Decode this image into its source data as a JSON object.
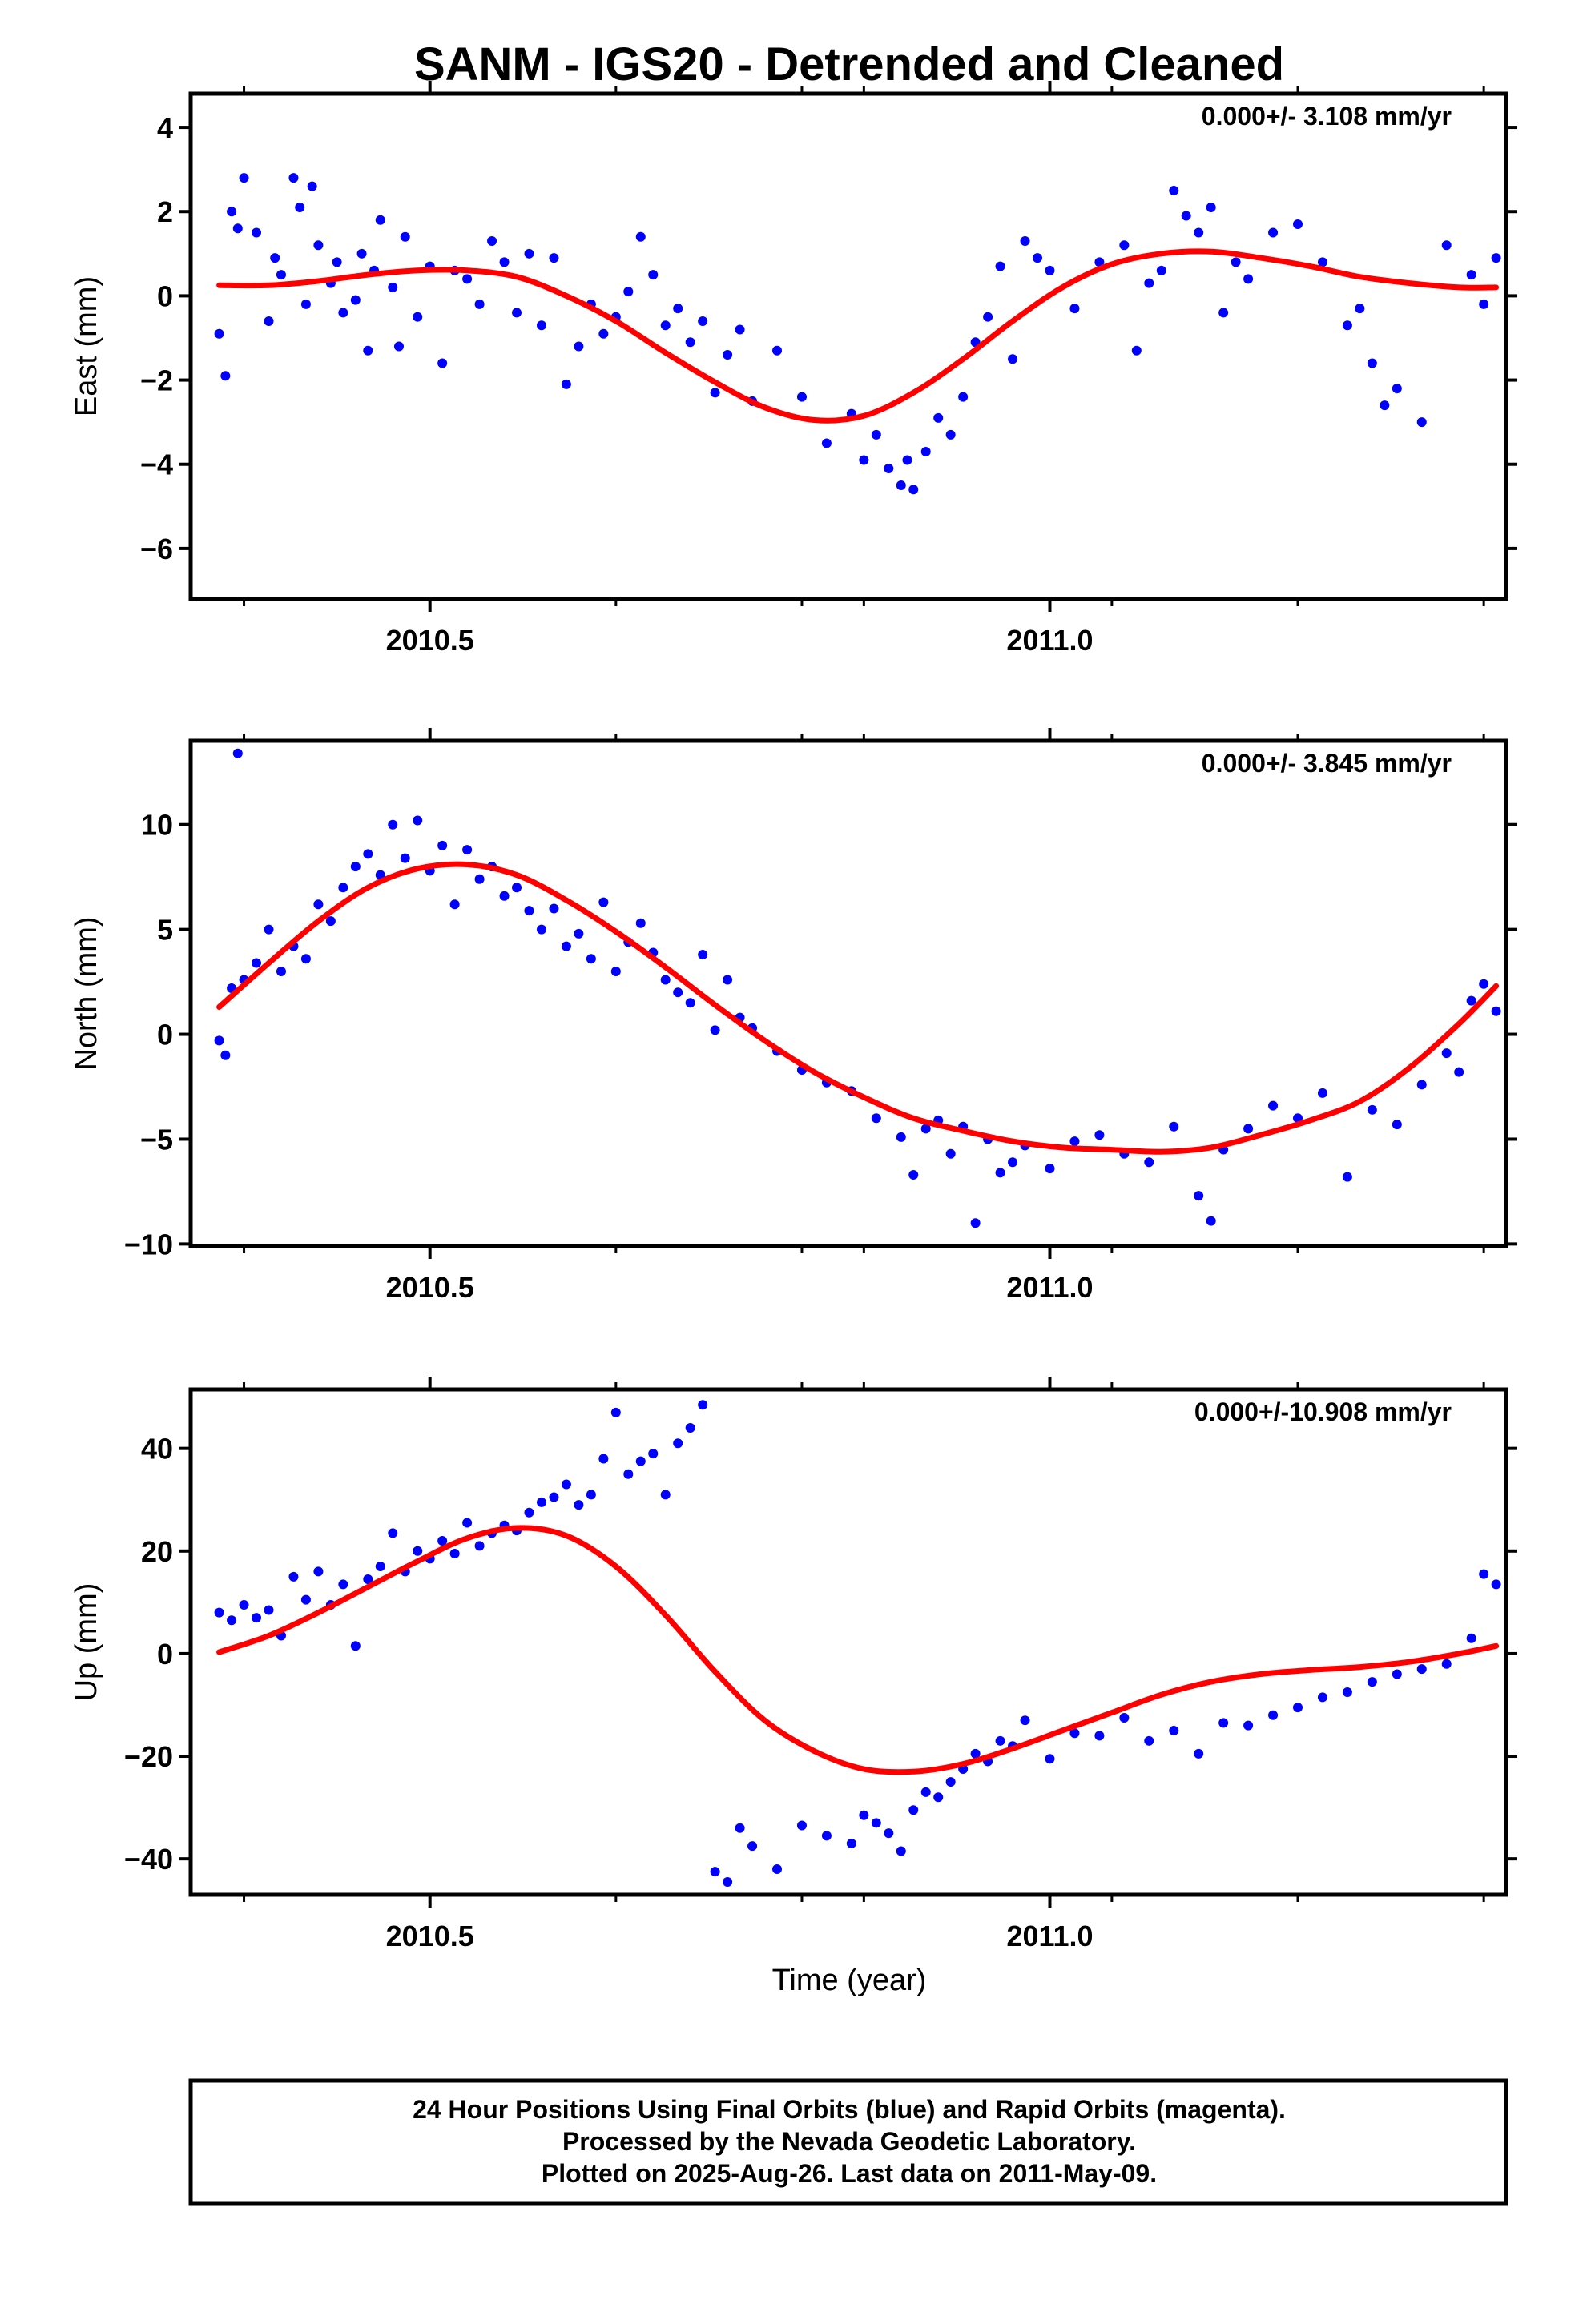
{
  "figure": {
    "title": "SANM - IGS20 - Detrended and Cleaned",
    "xlabel": "Time (year)",
    "footer": [
      "24 Hour Positions Using Final Orbits (blue) and Rapid Orbits (magenta).",
      "Processed by the Nevada Geodetic Laboratory.",
      "Plotted on 2025-Aug-26. Last data on 2011-May-09."
    ]
  },
  "colors": {
    "points": "#0000ff",
    "fit": "#ff0000",
    "frame": "#000000"
  },
  "chart_data": [
    {
      "type": "scatter",
      "ylabel": "East (mm)",
      "rate_label": "0.000+/- 3.108 mm/yr",
      "xlim": [
        2010.307,
        2011.368
      ],
      "ylim": [
        -7.2,
        4.8
      ],
      "yticks": [
        4,
        2,
        0,
        -2,
        -4,
        -6
      ],
      "xticks": [
        2010.5,
        2011.0
      ],
      "xtick_labels": [
        "2010.5",
        "2011.0"
      ],
      "series": [
        {
          "kind": "points",
          "x": [
            2010.33,
            2010.335,
            2010.34,
            2010.345,
            2010.35,
            2010.36,
            2010.37,
            2010.375,
            2010.38,
            2010.39,
            2010.395,
            2010.4,
            2010.405,
            2010.41,
            2010.42,
            2010.425,
            2010.43,
            2010.44,
            2010.445,
            2010.45,
            2010.455,
            2010.46,
            2010.47,
            2010.475,
            2010.48,
            2010.49,
            2010.5,
            2010.51,
            2010.52,
            2010.53,
            2010.54,
            2010.55,
            2010.56,
            2010.57,
            2010.58,
            2010.59,
            2010.6,
            2010.61,
            2010.62,
            2010.63,
            2010.64,
            2010.65,
            2010.66,
            2010.67,
            2010.68,
            2010.69,
            2010.7,
            2010.71,
            2010.72,
            2010.73,
            2010.74,
            2010.75,
            2010.76,
            2010.78,
            2010.8,
            2010.82,
            2010.84,
            2010.85,
            2010.86,
            2010.87,
            2010.88,
            2010.885,
            2010.89,
            2010.9,
            2010.91,
            2010.92,
            2010.93,
            2010.94,
            2010.95,
            2010.96,
            2010.97,
            2010.98,
            2010.99,
            2011.0,
            2011.02,
            2011.04,
            2011.06,
            2011.07,
            2011.08,
            2011.09,
            2011.1,
            2011.11,
            2011.12,
            2011.13,
            2011.14,
            2011.15,
            2011.16,
            2011.18,
            2011.2,
            2011.22,
            2011.24,
            2011.25,
            2011.26,
            2011.27,
            2011.28,
            2011.3,
            2011.32,
            2011.34,
            2011.35,
            2011.36
          ],
          "y": [
            -0.9,
            -1.9,
            2.0,
            1.6,
            2.8,
            1.5,
            -0.6,
            0.9,
            0.5,
            2.8,
            2.1,
            -0.2,
            2.6,
            1.2,
            0.3,
            0.8,
            -0.4,
            -0.1,
            1.0,
            -1.3,
            0.6,
            1.8,
            0.2,
            -1.2,
            1.4,
            -0.5,
            0.7,
            -1.6,
            0.6,
            0.4,
            -0.2,
            1.3,
            0.8,
            -0.4,
            1.0,
            -0.7,
            0.9,
            -2.1,
            -1.2,
            -0.2,
            -0.9,
            -0.5,
            0.1,
            1.4,
            0.5,
            -0.7,
            -0.3,
            -1.1,
            -0.6,
            -2.3,
            -1.4,
            -0.8,
            -2.5,
            -1.3,
            -2.4,
            -3.5,
            -2.8,
            -3.9,
            -3.3,
            -4.1,
            -4.5,
            -3.9,
            -4.6,
            -3.7,
            -2.9,
            -3.3,
            -2.4,
            -1.1,
            -0.5,
            0.7,
            -1.5,
            1.3,
            0.9,
            0.6,
            -0.3,
            0.8,
            1.2,
            -1.3,
            0.3,
            0.6,
            2.5,
            1.9,
            1.5,
            2.1,
            -0.4,
            0.8,
            0.4,
            1.5,
            1.7,
            0.8,
            -0.7,
            -0.3,
            -1.6,
            -2.6,
            -2.2,
            -3.0,
            1.2,
            0.5,
            -0.2,
            0.9
          ]
        },
        {
          "kind": "line",
          "x": [
            2010.33,
            2010.37,
            2010.41,
            2010.45,
            2010.49,
            2010.53,
            2010.57,
            2010.61,
            2010.65,
            2010.69,
            2010.73,
            2010.77,
            2010.81,
            2010.85,
            2010.89,
            2010.93,
            2010.97,
            2011.01,
            2011.05,
            2011.09,
            2011.13,
            2011.17,
            2011.21,
            2011.25,
            2011.29,
            2011.33,
            2011.36
          ],
          "y": [
            0.25,
            0.25,
            0.35,
            0.5,
            0.6,
            0.6,
            0.45,
            0.0,
            -0.6,
            -1.35,
            -2.05,
            -2.65,
            -2.95,
            -2.85,
            -2.3,
            -1.5,
            -0.6,
            0.2,
            0.75,
            1.0,
            1.05,
            0.9,
            0.7,
            0.45,
            0.3,
            0.2,
            0.2
          ]
        }
      ]
    },
    {
      "type": "scatter",
      "ylabel": "North (mm)",
      "rate_label": "0.000+/- 3.845 mm/yr",
      "xlim": [
        2010.307,
        2011.368
      ],
      "ylim": [
        -10.1,
        14.0
      ],
      "yticks": [
        10,
        5,
        0,
        -5,
        -10
      ],
      "xticks": [
        2010.5,
        2011.0
      ],
      "xtick_labels": [
        "2010.5",
        "2011.0"
      ],
      "series": [
        {
          "kind": "points",
          "x": [
            2010.33,
            2010.335,
            2010.34,
            2010.345,
            2010.35,
            2010.36,
            2010.37,
            2010.38,
            2010.39,
            2010.4,
            2010.41,
            2010.42,
            2010.43,
            2010.44,
            2010.45,
            2010.46,
            2010.47,
            2010.48,
            2010.49,
            2010.5,
            2010.51,
            2010.52,
            2010.53,
            2010.54,
            2010.55,
            2010.56,
            2010.57,
            2010.58,
            2010.59,
            2010.6,
            2010.61,
            2010.62,
            2010.63,
            2010.64,
            2010.65,
            2010.66,
            2010.67,
            2010.68,
            2010.69,
            2010.7,
            2010.71,
            2010.72,
            2010.73,
            2010.74,
            2010.75,
            2010.76,
            2010.78,
            2010.8,
            2010.82,
            2010.84,
            2010.86,
            2010.88,
            2010.89,
            2010.9,
            2010.91,
            2010.92,
            2010.93,
            2010.94,
            2010.95,
            2010.96,
            2010.97,
            2010.98,
            2011.0,
            2011.02,
            2011.04,
            2011.06,
            2011.08,
            2011.1,
            2011.12,
            2011.13,
            2011.14,
            2011.16,
            2011.18,
            2011.2,
            2011.22,
            2011.24,
            2011.26,
            2011.28,
            2011.3,
            2011.32,
            2011.33,
            2011.34,
            2011.35,
            2011.36
          ],
          "y": [
            -0.3,
            -1.0,
            2.2,
            13.4,
            2.6,
            3.4,
            5.0,
            3.0,
            4.2,
            3.6,
            6.2,
            5.4,
            7.0,
            8.0,
            8.6,
            7.6,
            10.0,
            8.4,
            10.2,
            7.8,
            9.0,
            6.2,
            8.8,
            7.4,
            8.0,
            6.6,
            7.0,
            5.9,
            5.0,
            6.0,
            4.2,
            4.8,
            3.6,
            6.3,
            3.0,
            4.4,
            5.3,
            3.9,
            2.6,
            2.0,
            1.5,
            3.8,
            0.2,
            2.6,
            0.8,
            0.3,
            -0.8,
            -1.7,
            -2.3,
            -2.7,
            -4.0,
            -4.9,
            -6.7,
            -4.5,
            -4.1,
            -5.7,
            -4.4,
            -9.0,
            -5.0,
            -6.6,
            -6.1,
            -5.3,
            -6.4,
            -5.1,
            -4.8,
            -5.7,
            -6.1,
            -4.4,
            -7.7,
            -8.9,
            -5.5,
            -4.5,
            -3.4,
            -4.0,
            -2.8,
            -6.8,
            -3.6,
            -4.3,
            -2.4,
            -0.9,
            -1.8,
            1.6,
            2.4,
            1.1
          ]
        },
        {
          "kind": "line",
          "x": [
            2010.33,
            2010.37,
            2010.41,
            2010.45,
            2010.49,
            2010.53,
            2010.57,
            2010.61,
            2010.65,
            2010.69,
            2010.73,
            2010.77,
            2010.81,
            2010.85,
            2010.89,
            2010.93,
            2010.97,
            2011.01,
            2011.05,
            2011.09,
            2011.13,
            2011.17,
            2011.21,
            2011.25,
            2011.29,
            2011.33,
            2011.36
          ],
          "y": [
            1.3,
            3.4,
            5.4,
            7.0,
            7.9,
            8.1,
            7.6,
            6.4,
            4.9,
            3.2,
            1.4,
            -0.3,
            -1.8,
            -3.0,
            -4.0,
            -4.6,
            -5.1,
            -5.4,
            -5.5,
            -5.6,
            -5.4,
            -4.8,
            -4.1,
            -3.2,
            -1.6,
            0.5,
            2.3
          ]
        }
      ]
    },
    {
      "type": "scatter",
      "ylabel": "Up (mm)",
      "rate_label": "0.000+/-10.908 mm/yr",
      "xlim": [
        2010.307,
        2011.368
      ],
      "ylim": [
        -47.0,
        51.5
      ],
      "yticks": [
        40,
        20,
        0,
        -20,
        -40
      ],
      "xticks": [
        2010.5,
        2011.0
      ],
      "xtick_labels": [
        "2010.5",
        "2011.0"
      ],
      "series": [
        {
          "kind": "points",
          "x": [
            2010.33,
            2010.34,
            2010.35,
            2010.36,
            2010.37,
            2010.38,
            2010.39,
            2010.4,
            2010.41,
            2010.42,
            2010.43,
            2010.44,
            2010.45,
            2010.46,
            2010.47,
            2010.48,
            2010.49,
            2010.5,
            2010.51,
            2010.52,
            2010.53,
            2010.54,
            2010.55,
            2010.56,
            2010.57,
            2010.58,
            2010.59,
            2010.6,
            2010.61,
            2010.62,
            2010.63,
            2010.64,
            2010.65,
            2010.66,
            2010.67,
            2010.68,
            2010.69,
            2010.7,
            2010.71,
            2010.72,
            2010.73,
            2010.74,
            2010.75,
            2010.76,
            2010.78,
            2010.8,
            2010.82,
            2010.84,
            2010.85,
            2010.86,
            2010.87,
            2010.88,
            2010.89,
            2010.9,
            2010.91,
            2010.92,
            2010.93,
            2010.94,
            2010.95,
            2010.96,
            2010.97,
            2010.98,
            2011.0,
            2011.02,
            2011.04,
            2011.06,
            2011.08,
            2011.1,
            2011.12,
            2011.14,
            2011.16,
            2011.18,
            2011.2,
            2011.22,
            2011.24,
            2011.26,
            2011.28,
            2011.3,
            2011.32,
            2011.34,
            2011.35,
            2011.36
          ],
          "y": [
            8.0,
            6.5,
            9.5,
            7.0,
            8.5,
            3.5,
            15.0,
            10.5,
            16.0,
            9.5,
            13.5,
            1.5,
            14.5,
            17.0,
            23.5,
            16.0,
            20.0,
            18.5,
            22.0,
            19.5,
            25.5,
            21.0,
            23.5,
            25.0,
            24.0,
            27.5,
            29.5,
            30.5,
            33.0,
            29.0,
            31.0,
            38.0,
            47.0,
            35.0,
            37.5,
            39.0,
            31.0,
            41.0,
            44.0,
            48.5,
            -42.5,
            -44.5,
            -34.0,
            -37.5,
            -42.0,
            -33.5,
            -35.5,
            -37.0,
            -31.5,
            -33.0,
            -35.0,
            -38.5,
            -30.5,
            -27.0,
            -28.0,
            -25.0,
            -22.5,
            -19.5,
            -21.0,
            -17.0,
            -18.0,
            -13.0,
            -20.5,
            -15.5,
            -16.0,
            -12.5,
            -17.0,
            -15.0,
            -19.5,
            -13.5,
            -14.0,
            -12.0,
            -10.5,
            -8.5,
            -7.5,
            -5.5,
            -4.0,
            -3.0,
            -2.0,
            3.0,
            15.5,
            13.5
          ]
        },
        {
          "kind": "line",
          "x": [
            2010.33,
            2010.37,
            2010.41,
            2010.45,
            2010.49,
            2010.53,
            2010.57,
            2010.61,
            2010.65,
            2010.69,
            2010.73,
            2010.77,
            2010.81,
            2010.85,
            2010.89,
            2010.93,
            2010.97,
            2011.01,
            2011.05,
            2011.09,
            2011.13,
            2011.17,
            2011.21,
            2011.25,
            2011.29,
            2011.33,
            2011.36
          ],
          "y": [
            0.3,
            3.5,
            8.0,
            13.0,
            18.0,
            22.5,
            24.5,
            23.0,
            17.0,
            7.5,
            -3.5,
            -13.0,
            -19.0,
            -22.5,
            -23.0,
            -21.5,
            -18.5,
            -15.0,
            -11.5,
            -8.0,
            -5.5,
            -4.0,
            -3.2,
            -2.6,
            -1.6,
            0.0,
            1.5
          ]
        }
      ]
    }
  ]
}
